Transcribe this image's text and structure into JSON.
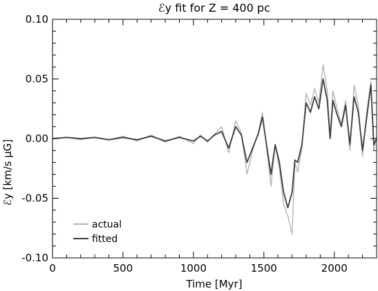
{
  "chart_data": {
    "type": "line",
    "title": "ℰy fit for Z = 400 pc",
    "xlabel": "Time [Myr]",
    "ylabel": "ℰy [km/s μG]",
    "xlim": [
      0,
      2300
    ],
    "ylim": [
      -0.1,
      0.1
    ],
    "x_ticks": [
      0,
      500,
      1000,
      1500,
      2000
    ],
    "x_tick_labels": [
      "0",
      "500",
      "1000",
      "1500",
      "2000"
    ],
    "y_ticks": [
      -0.1,
      -0.05,
      0.0,
      0.05,
      0.1
    ],
    "y_tick_labels": [
      "-0.10",
      "-0.05",
      "0.00",
      "0.05",
      "0.10"
    ],
    "legend_position": "bottom-left",
    "grid": false,
    "series": [
      {
        "name": "actual",
        "color": "#b4b4b4",
        "x": [
          0,
          100,
          200,
          300,
          400,
          500,
          600,
          700,
          800,
          900,
          1000,
          1050,
          1100,
          1150,
          1200,
          1250,
          1300,
          1340,
          1380,
          1420,
          1460,
          1490,
          1520,
          1550,
          1580,
          1610,
          1640,
          1670,
          1700,
          1720,
          1740,
          1770,
          1800,
          1830,
          1860,
          1890,
          1920,
          1950,
          1970,
          1990,
          2020,
          2050,
          2080,
          2110,
          2140,
          2170,
          2200,
          2230,
          2260,
          2280,
          2300
        ],
        "y": [
          0.0,
          0.001,
          -0.001,
          0.001,
          -0.001,
          0.002,
          -0.002,
          0.003,
          -0.003,
          0.002,
          -0.004,
          0.003,
          -0.003,
          0.004,
          0.01,
          -0.012,
          0.015,
          0.005,
          -0.03,
          -0.01,
          0.005,
          0.022,
          -0.008,
          -0.04,
          -0.005,
          -0.025,
          -0.055,
          -0.065,
          -0.08,
          -0.02,
          -0.028,
          -0.008,
          0.038,
          0.028,
          0.042,
          0.03,
          0.062,
          0.04,
          0.002,
          0.04,
          0.025,
          0.012,
          0.032,
          -0.01,
          0.045,
          0.028,
          -0.015,
          0.022,
          0.048,
          -0.01,
          0.002
        ]
      },
      {
        "name": "fitted",
        "color": "#3c3c3c",
        "x": [
          0,
          100,
          200,
          300,
          400,
          500,
          600,
          700,
          800,
          900,
          1000,
          1050,
          1100,
          1150,
          1200,
          1250,
          1300,
          1340,
          1380,
          1420,
          1460,
          1490,
          1520,
          1550,
          1580,
          1610,
          1640,
          1670,
          1700,
          1720,
          1740,
          1770,
          1800,
          1830,
          1860,
          1890,
          1920,
          1950,
          1970,
          1990,
          2020,
          2050,
          2080,
          2110,
          2140,
          2170,
          2200,
          2230,
          2260,
          2280,
          2300
        ],
        "y": [
          0.0,
          0.001,
          0.0,
          0.001,
          -0.001,
          0.001,
          -0.001,
          0.002,
          -0.002,
          0.001,
          -0.002,
          0.002,
          -0.002,
          0.003,
          0.006,
          -0.008,
          0.01,
          0.003,
          -0.02,
          -0.008,
          0.004,
          0.018,
          -0.006,
          -0.03,
          -0.005,
          -0.02,
          -0.045,
          -0.058,
          -0.045,
          -0.018,
          -0.02,
          -0.005,
          0.03,
          0.022,
          0.035,
          0.025,
          0.05,
          0.032,
          0.0,
          0.032,
          0.02,
          0.01,
          0.028,
          -0.005,
          0.035,
          0.022,
          -0.01,
          0.018,
          0.045,
          -0.005,
          0.0
        ]
      }
    ]
  }
}
